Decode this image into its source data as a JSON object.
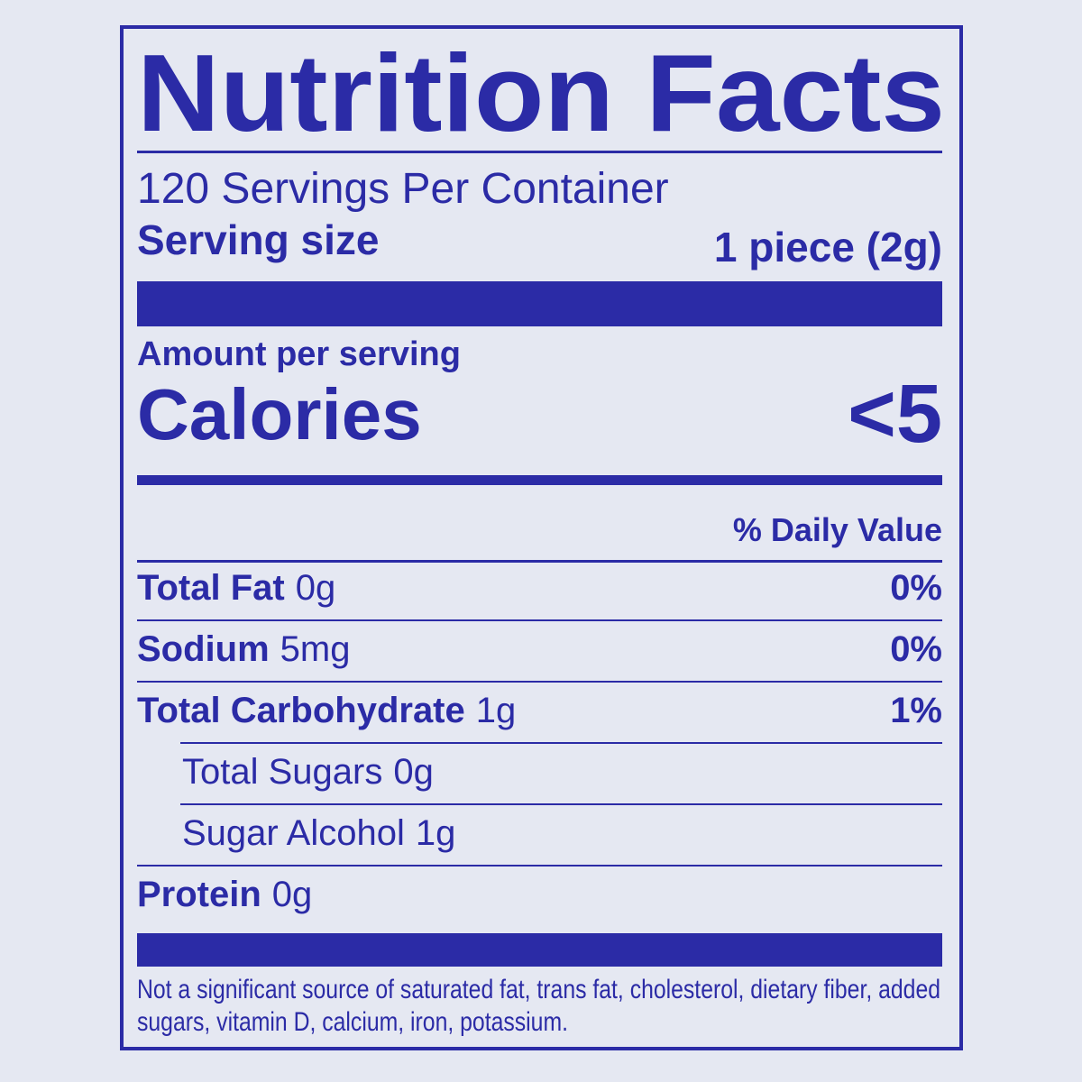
{
  "title": "Nutrition Facts",
  "servings": "120 Servings Per Container",
  "serving_size": {
    "label": "Serving size",
    "value": "1 piece (2g)"
  },
  "amount_per_serving": "Amount per serving",
  "calories": {
    "label": "Calories",
    "value": "<5"
  },
  "daily_value_header": "% Daily Value",
  "nutrients": [
    {
      "name": "Total Fat",
      "amount": "0g",
      "dv": "0%"
    },
    {
      "name": "Sodium",
      "amount": "5mg",
      "dv": "0%"
    },
    {
      "name": "Total Carbohydrate",
      "amount": "1g",
      "dv": "1%",
      "sub": [
        {
          "name": "Total Sugars",
          "amount": "0g"
        },
        {
          "name": "Sugar Alcohol",
          "amount": "1g"
        }
      ]
    },
    {
      "name": "Protein",
      "amount": "0g"
    }
  ],
  "footnote": [
    "Not a significant source of saturated fat, trans fat, cholesterol, dietary fiber, added",
    "sugars, vitamin D, calcium, iron, potassium."
  ]
}
